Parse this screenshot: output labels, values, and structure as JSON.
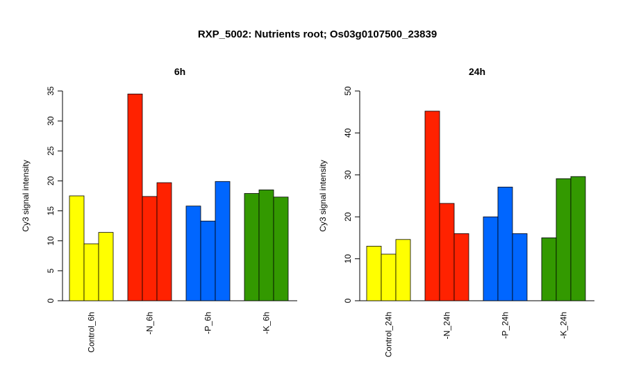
{
  "title": "RXP_5002: Nutrients root; Os03g0107500_23839",
  "chart_data": [
    {
      "type": "bar",
      "title": "6h",
      "ylabel": "Cy3 signal intensity",
      "xlabel": "",
      "ylim": [
        0,
        35
      ],
      "yticks": [
        0,
        5,
        10,
        15,
        20,
        25,
        30,
        35
      ],
      "groups": [
        {
          "label": "Control_6h",
          "color": "#ffff00",
          "values": [
            17.5,
            9.5,
            11.4
          ]
        },
        {
          "label": "-N_6h",
          "color": "#ff2200",
          "values": [
            34.5,
            17.4,
            19.7
          ]
        },
        {
          "label": "-P_6h",
          "color": "#0066ff",
          "values": [
            15.8,
            13.3,
            19.9
          ]
        },
        {
          "label": "-K_6h",
          "color": "#339900",
          "values": [
            17.9,
            18.5,
            17.3
          ]
        }
      ]
    },
    {
      "type": "bar",
      "title": "24h",
      "ylabel": "Cy3 signal intensity",
      "xlabel": "",
      "ylim": [
        0,
        50
      ],
      "yticks": [
        0,
        10,
        20,
        30,
        40,
        50
      ],
      "groups": [
        {
          "label": "Control_24h",
          "color": "#ffff00",
          "values": [
            13.0,
            11.1,
            14.6
          ]
        },
        {
          "label": "-N_24h",
          "color": "#ff2200",
          "values": [
            45.2,
            23.2,
            16.0
          ]
        },
        {
          "label": "-P_24h",
          "color": "#0066ff",
          "values": [
            20.0,
            27.1,
            16.0
          ]
        },
        {
          "label": "-K_24h",
          "color": "#339900",
          "values": [
            15.0,
            29.1,
            29.6
          ]
        }
      ]
    }
  ]
}
